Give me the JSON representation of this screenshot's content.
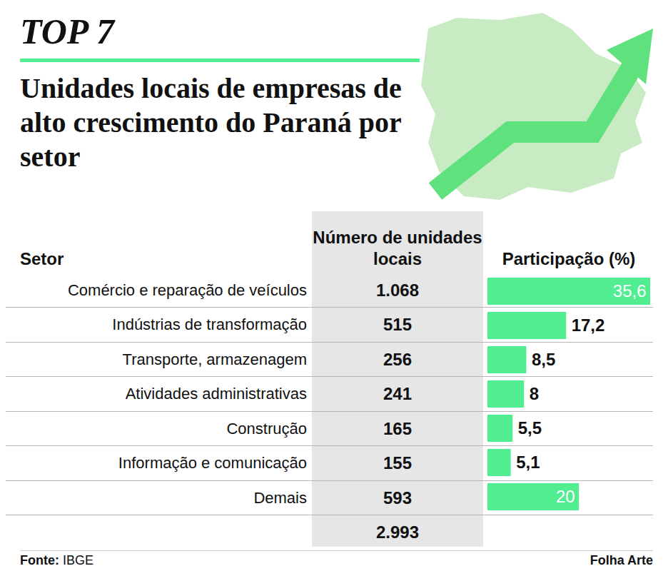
{
  "chart_data": {
    "type": "bar",
    "orientation": "horizontal",
    "title": "TOP 7",
    "subtitle": "Unidades locais de empresas de alto crescimento do Paraná por setor",
    "category_header": "Setor",
    "units_header": "Número de unidades locais",
    "values_header": "Participação (%)",
    "categories": [
      "Comércio e reparação de veículos",
      "Indústrias de transformação",
      "Transporte, armazenagem",
      "Atividades administrativas",
      "Construção",
      "Informação e comunicação",
      "Demais"
    ],
    "units": [
      "1.068",
      "515",
      "256",
      "241",
      "165",
      "155",
      "593"
    ],
    "units_total": "2.993",
    "values": [
      35.6,
      17.2,
      8.5,
      8,
      5.5,
      5.1,
      20
    ],
    "value_labels": [
      "35,6",
      "17,2",
      "8,5",
      "8",
      "5,5",
      "5,1",
      "20"
    ],
    "color": "#50ee91",
    "data_labels": true,
    "xlim": [
      0,
      35.6
    ],
    "tick_labels": false,
    "source_label": "Fonte:",
    "source": "IBGE",
    "credit": "Folha Arte"
  }
}
